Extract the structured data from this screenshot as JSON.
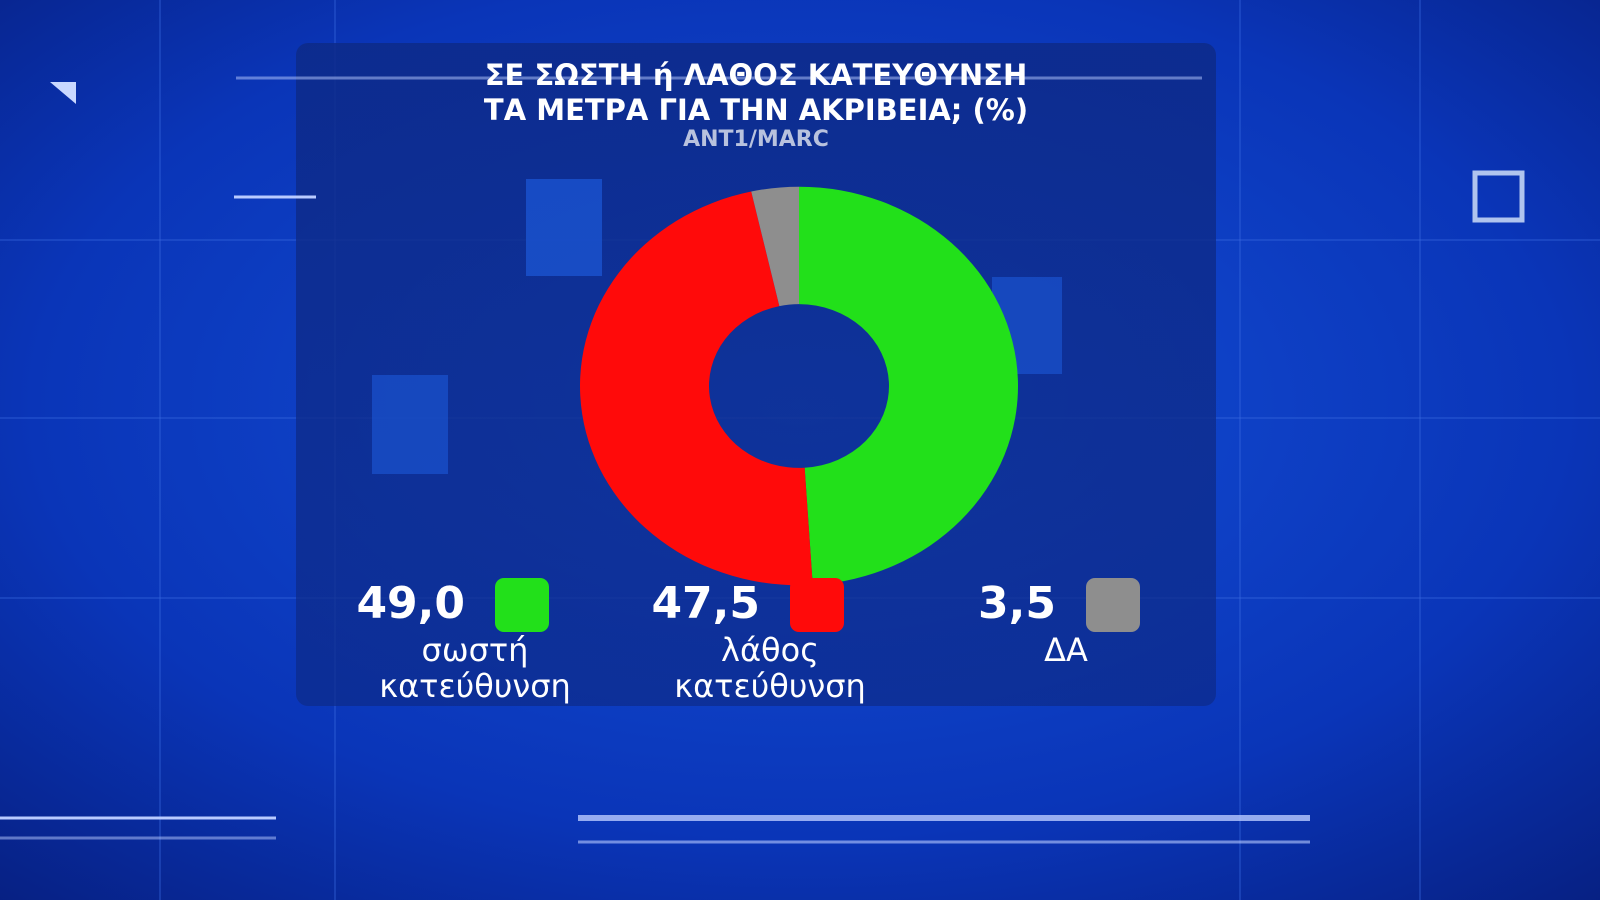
{
  "chart_data": {
    "type": "donut",
    "title": [
      "ΣΕ ΣΩΣΤΗ ή ΛΑΘΟΣ ΚΑΤΕΥΘΥΝΣΗ",
      "ΤΑ ΜΕΤΡΑ ΓΙΑ ΤΗΝ ΑΚΡΙΒΕΙΑ; (%)"
    ],
    "subtitle": "ANT1/MARC",
    "categories": [
      "σωστή κατεύθυνση",
      "λάθος κατεύθυνση",
      "ΔΑ"
    ],
    "values": [
      49.0,
      47.5,
      3.5
    ],
    "value_labels": [
      "49,0",
      "47,5",
      "3,5"
    ],
    "colors": [
      "#22e01a",
      "#ff0a0a",
      "#8e8e8e"
    ]
  }
}
